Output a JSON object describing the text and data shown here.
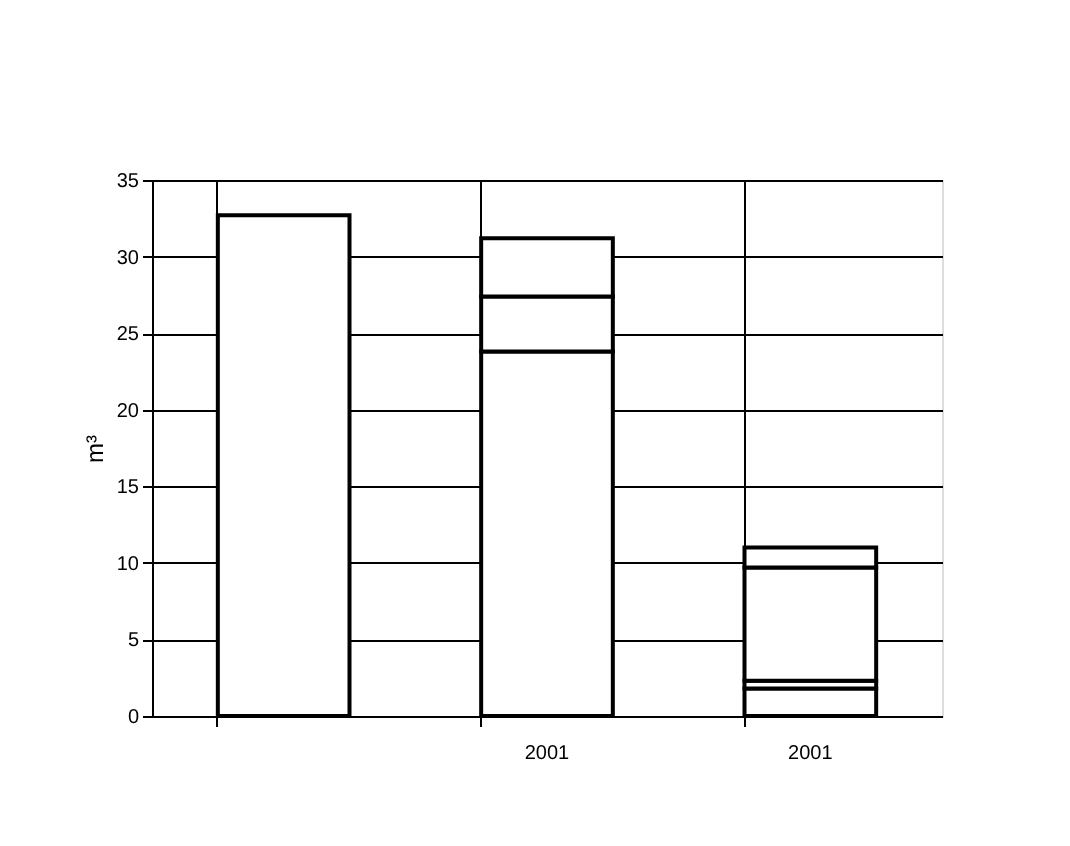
{
  "chart_data": {
    "type": "bar",
    "stacked": true,
    "ylabel": "m³",
    "categories": [
      null,
      "2001",
      "2001"
    ],
    "series": [
      {
        "color": "#ffffff",
        "values": [
          32.7,
          23.8,
          1.8
        ]
      },
      {
        "color": "#ffffff",
        "values": [
          null,
          3.6,
          0.5
        ]
      },
      {
        "color": "#ffffff",
        "values": [
          null,
          3.8,
          7.4
        ]
      },
      {
        "color": "#ffffff",
        "values": [
          null,
          null,
          1.3
        ]
      }
    ],
    "ylim": [
      0,
      35
    ],
    "yticks": [
      0,
      5,
      10,
      15,
      20,
      25,
      30,
      35
    ],
    "grid": true
  }
}
